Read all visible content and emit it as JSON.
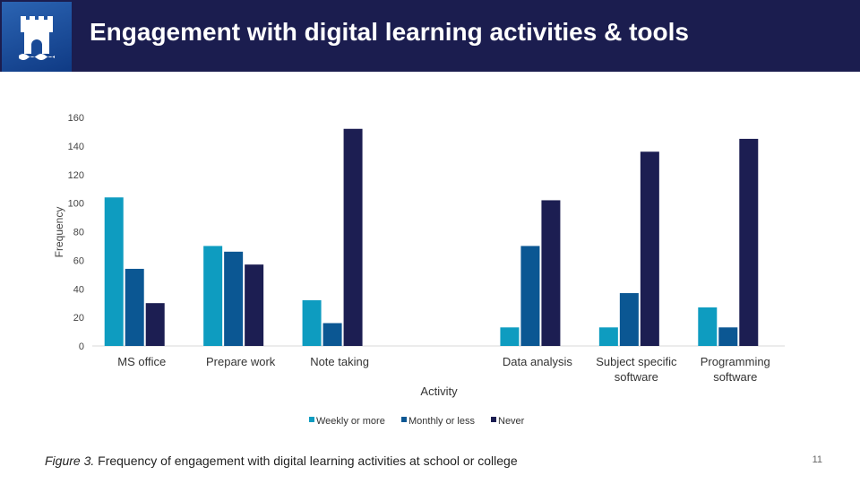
{
  "slide": {
    "title": "Engagement with digital learning activities & tools",
    "caption_label": "Figure 3.",
    "caption_text": " Frequency of engagement with digital learning activities at school or college",
    "page_number": "11"
  },
  "chart_data": {
    "type": "bar",
    "title": "",
    "xlabel": "Activity",
    "ylabel": "Frequency",
    "ylim": [
      0,
      160
    ],
    "yticks": [
      0,
      20,
      40,
      60,
      80,
      100,
      120,
      140,
      160
    ],
    "categories": [
      [
        "MS office"
      ],
      [
        "Prepare work"
      ],
      [
        "Note taking"
      ],
      [
        ""
      ],
      [
        "Data analysis"
      ],
      [
        "Subject specific",
        "software"
      ],
      [
        "Programming",
        "software"
      ]
    ],
    "series": [
      {
        "name": "Weekly or more",
        "color": "#0e9cc0",
        "values": [
          104,
          70,
          32,
          0,
          13,
          13,
          27
        ]
      },
      {
        "name": "Monthly or less",
        "color": "#0b5793",
        "values": [
          54,
          66,
          16,
          0,
          70,
          37,
          13
        ]
      },
      {
        "name": "Never",
        "color": "#1c1e52",
        "values": [
          30,
          57,
          152,
          0,
          102,
          136,
          145
        ]
      }
    ],
    "grid": false,
    "legend_position": "bottom"
  }
}
